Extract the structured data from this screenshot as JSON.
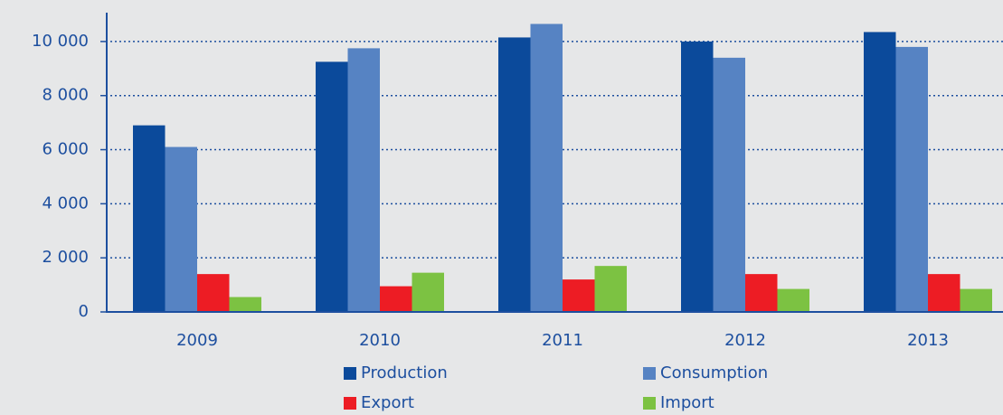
{
  "chart_data": {
    "type": "bar",
    "categories": [
      "2009",
      "2010",
      "2011",
      "2012",
      "2013"
    ],
    "series": [
      {
        "name": "Production",
        "color": "#0b4a9b",
        "values": [
          6900,
          9250,
          10150,
          10000,
          10350
        ]
      },
      {
        "name": "Consumption",
        "color": "#5683c3",
        "values": [
          6100,
          9750,
          10650,
          9400,
          9800
        ]
      },
      {
        "name": "Export",
        "color": "#ed1c24",
        "values": [
          1400,
          950,
          1200,
          1400,
          1400
        ]
      },
      {
        "name": "Import",
        "color": "#7cc242",
        "values": [
          550,
          1450,
          1700,
          850,
          850
        ]
      }
    ],
    "ylim": [
      0,
      11000
    ],
    "yticks": [
      0,
      {
        "value": 2000,
        "label": "2 000"
      },
      {
        "value": 4000,
        "label": "4 000"
      },
      {
        "value": 6000,
        "label": "6 000"
      },
      {
        "value": 8000,
        "label": "8 000"
      },
      {
        "value": 10000,
        "label": "10 000"
      }
    ],
    "grid": true
  }
}
